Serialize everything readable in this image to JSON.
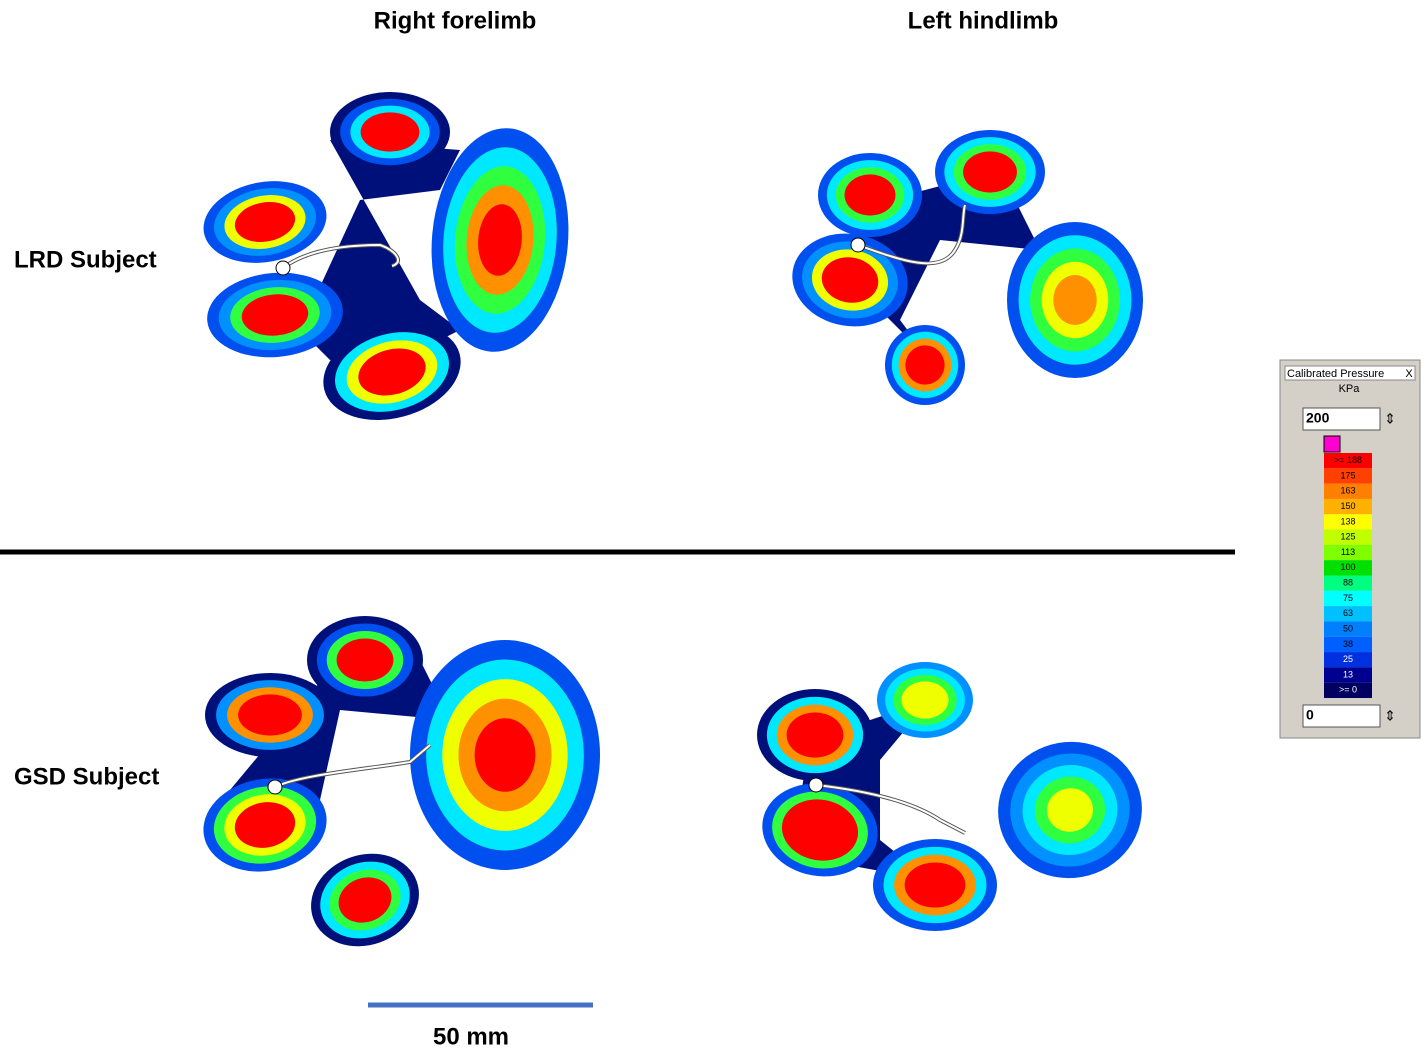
{
  "columns": [
    "Right forelimb",
    "Left hindlimb"
  ],
  "rows": [
    "LRD Subject",
    "GSD Subject"
  ],
  "scale_bar": "50 mm",
  "legend": {
    "title": "Calibrated Pressure",
    "close": "X",
    "unit": "KPa",
    "max": "200",
    "min": "0",
    "levels": [
      ">= 188",
      "175",
      "163",
      "150",
      "138",
      "125",
      "113",
      "100",
      "88",
      "75",
      "63",
      "50",
      "38",
      "25",
      "13",
      ">= 0"
    ]
  }
}
